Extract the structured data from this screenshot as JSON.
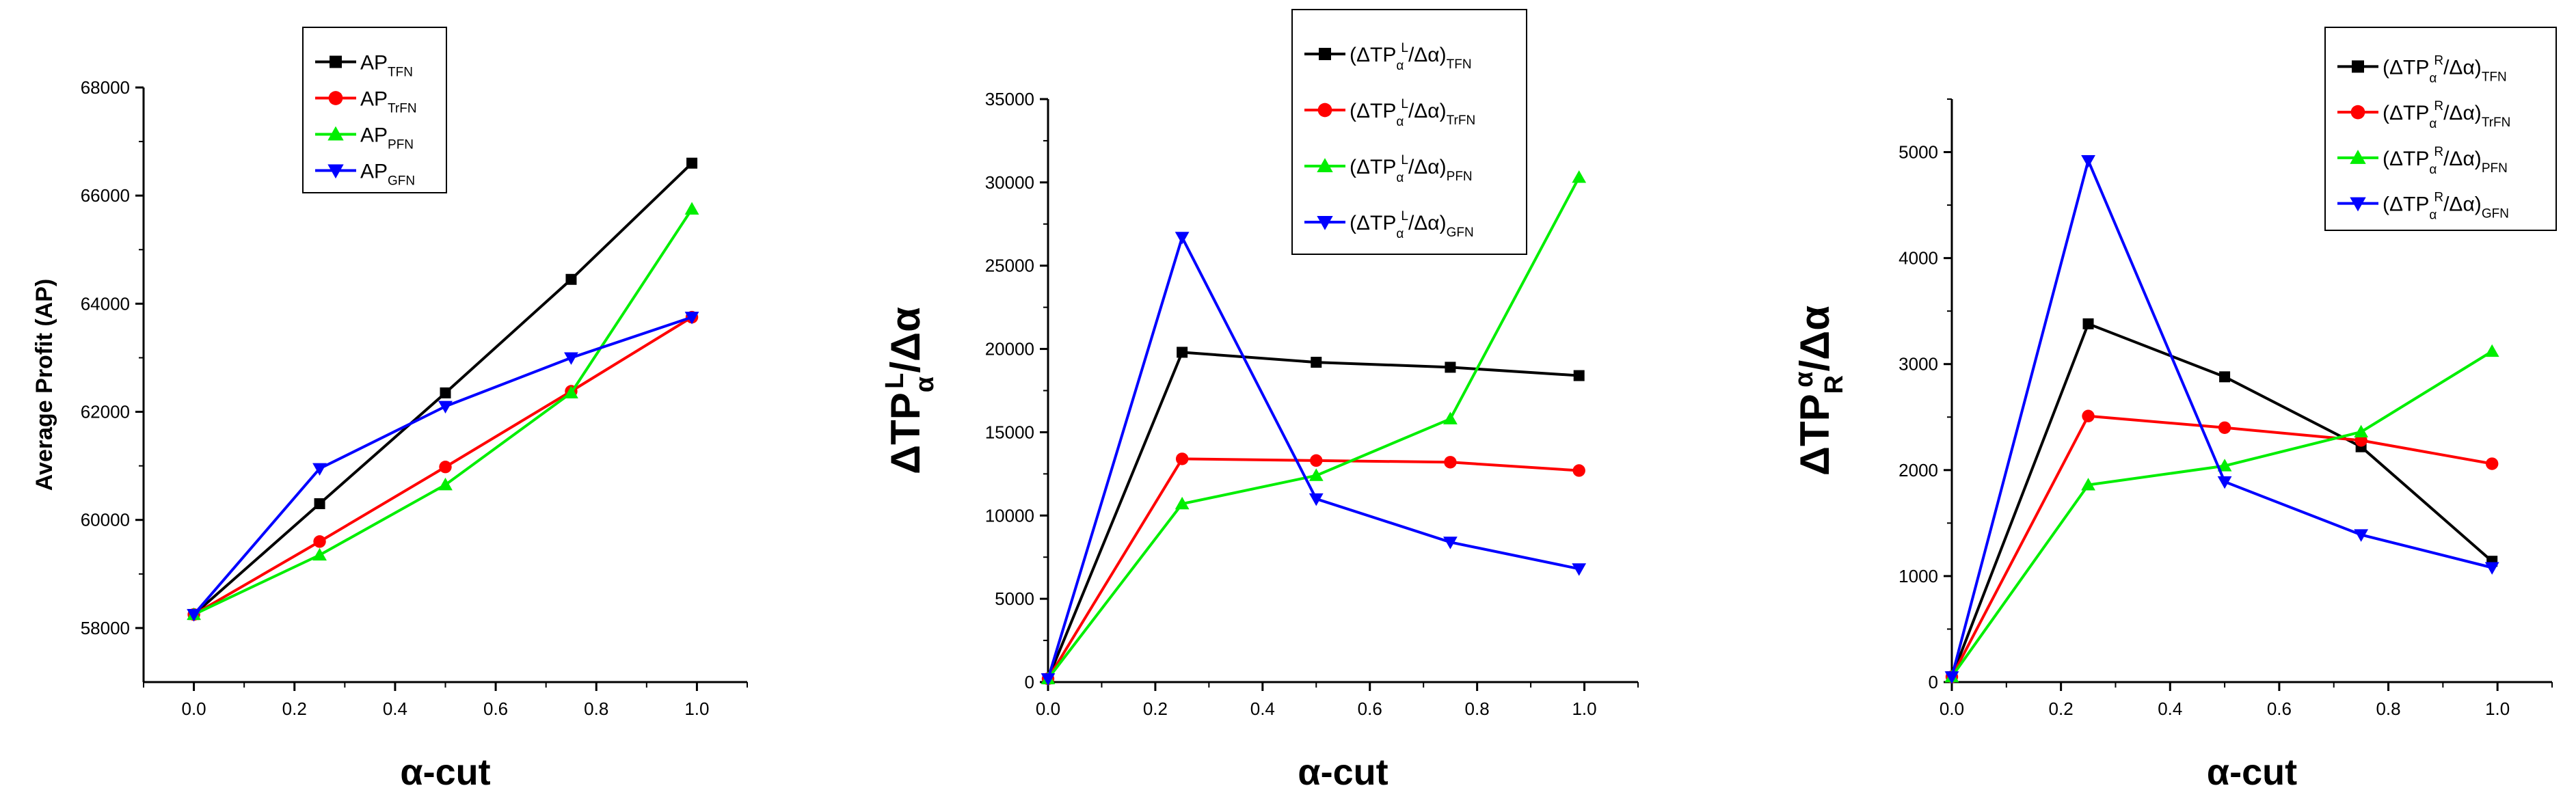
{
  "chart_data": [
    {
      "type": "line",
      "title": "",
      "xlabel": "α-cut",
      "ylabel": "Average Profit (AP)",
      "xlim": [
        -0.1,
        1.1
      ],
      "ylim": [
        57000,
        68000
      ],
      "xticks": [
        "0.0",
        "0.2",
        "0.4",
        "0.6",
        "0.8",
        "1.0"
      ],
      "yticks": [
        "58000",
        "60000",
        "62000",
        "64000",
        "66000",
        "68000"
      ],
      "legend_position": "top",
      "x": [
        0,
        0.25,
        0.5,
        0.75,
        0.99
      ],
      "series": [
        {
          "name": "AP",
          "sub": "TFN",
          "color": "#000000",
          "marker": "square",
          "values": [
            58250,
            60300,
            62350,
            64450,
            66600
          ]
        },
        {
          "name": "AP",
          "sub": "TrFN",
          "color": "#ff0000",
          "marker": "circle",
          "values": [
            58250,
            59600,
            60980,
            62380,
            63750
          ]
        },
        {
          "name": "AP",
          "sub": "PFN",
          "color": "#00ee00",
          "marker": "triangle-up",
          "values": [
            58250,
            59350,
            60650,
            62350,
            65750
          ]
        },
        {
          "name": "AP",
          "sub": "GFN",
          "color": "#0000ff",
          "marker": "triangle-down",
          "values": [
            58250,
            60950,
            62100,
            63000,
            63750
          ]
        }
      ]
    },
    {
      "type": "line",
      "title": "",
      "xlabel": "α-cut",
      "ylabel_base": "ΔTP",
      "ylabel_sub": "α",
      "ylabel_sup": "L",
      "ylabel_tail": "/Δα",
      "xlim": [
        0,
        1.1
      ],
      "ylim": [
        0,
        35000
      ],
      "xticks": [
        "0.0",
        "0.2",
        "0.4",
        "0.6",
        "0.8",
        "1.0"
      ],
      "yticks": [
        "0",
        "5000",
        "10000",
        "15000",
        "20000",
        "25000",
        "30000",
        "35000"
      ],
      "legend_position": "top",
      "legend_term": {
        "open": "(ΔTP",
        "sub": "α",
        "sup": "L",
        "close": "/Δα)"
      },
      "x": [
        0,
        0.25,
        0.5,
        0.75,
        0.99
      ],
      "series": [
        {
          "name": "(ΔTPαL/Δα)",
          "sub": "TFN",
          "color": "#000000",
          "marker": "square",
          "values": [
            200,
            19800,
            19200,
            18900,
            18400
          ]
        },
        {
          "name": "(ΔTPαL/Δα)",
          "sub": "TrFN",
          "color": "#ff0000",
          "marker": "circle",
          "values": [
            200,
            13400,
            13300,
            13200,
            12700
          ]
        },
        {
          "name": "(ΔTPαL/Δα)",
          "sub": "PFN",
          "color": "#00ee00",
          "marker": "triangle-up",
          "values": [
            200,
            10700,
            12400,
            15800,
            30300
          ]
        },
        {
          "name": "(ΔTPαL/Δα)",
          "sub": "GFN",
          "color": "#0000ff",
          "marker": "triangle-down",
          "values": [
            200,
            26700,
            11000,
            8400,
            6800
          ]
        }
      ]
    },
    {
      "type": "line",
      "title": "",
      "xlabel": "α-cut",
      "ylabel_base": "ΔTP",
      "ylabel_sub": "R",
      "ylabel_sup": "α",
      "ylabel_tail": "/Δα",
      "xlim": [
        0,
        1.1
      ],
      "ylim": [
        0,
        5500
      ],
      "xticks": [
        "0.0",
        "0.2",
        "0.4",
        "0.6",
        "0.8",
        "1.0"
      ],
      "yticks": [
        "0",
        "1000",
        "2000",
        "3000",
        "4000",
        "5000"
      ],
      "legend_position": "top-right",
      "legend_term": {
        "open": "(ΔTP",
        "sub": "α",
        "sup": "R",
        "close": "/Δα)"
      },
      "x": [
        0,
        0.25,
        0.5,
        0.75,
        0.99
      ],
      "series": [
        {
          "name": "(ΔTPαR/Δα)",
          "sub": "TFN",
          "color": "#000000",
          "marker": "square",
          "values": [
            50,
            3380,
            2880,
            2220,
            1140
          ]
        },
        {
          "name": "(ΔTPαR/Δα)",
          "sub": "TrFN",
          "color": "#ff0000",
          "marker": "circle",
          "values": [
            50,
            2510,
            2400,
            2280,
            2060
          ]
        },
        {
          "name": "(ΔTPαR/Δα)",
          "sub": "PFN",
          "color": "#00ee00",
          "marker": "triangle-up",
          "values": [
            50,
            1860,
            2040,
            2360,
            3120
          ]
        },
        {
          "name": "(ΔTPαR/Δα)",
          "sub": "GFN",
          "color": "#0000ff",
          "marker": "triangle-down",
          "values": [
            50,
            4920,
            1890,
            1390,
            1080
          ]
        }
      ]
    }
  ]
}
